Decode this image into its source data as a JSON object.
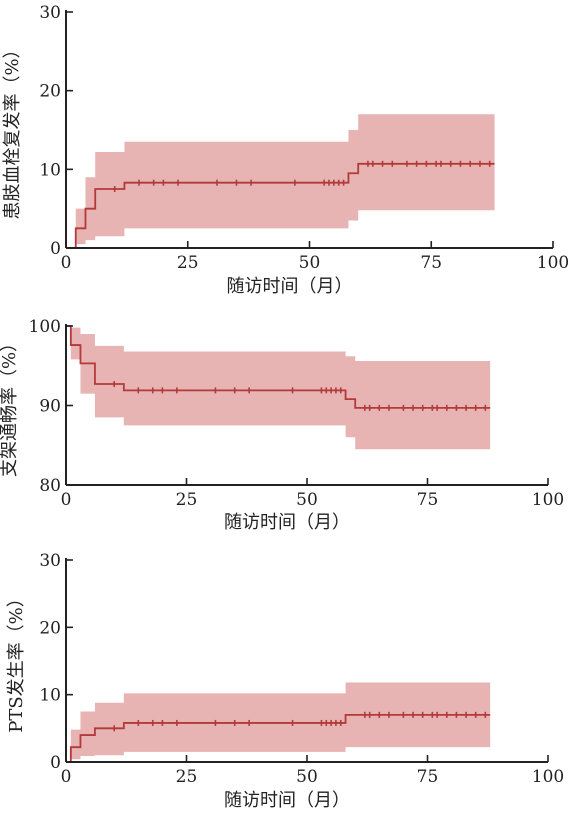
{
  "chart_data": [
    {
      "type": "line",
      "title": "",
      "xlabel": "随访时间（月）",
      "ylabel": "患肢血栓复发率（%）",
      "xlim": [
        0,
        100
      ],
      "ylim": [
        0,
        30
      ],
      "xticks": [
        "0",
        "25",
        "50",
        "75",
        "100"
      ],
      "yticks": [
        "0",
        "10",
        "20",
        "30"
      ],
      "grid": false,
      "series": [
        {
          "style": "step",
          "color": "#b33a3a",
          "x": [
            0,
            2,
            4,
            6,
            12,
            58,
            60,
            88
          ],
          "y": [
            0,
            2.5,
            5.0,
            7.5,
            8.3,
            9.5,
            10.7,
            10.7
          ],
          "ci_lower": [
            0,
            0.5,
            1.0,
            1.5,
            2.5,
            3.5,
            4.8,
            4.8
          ],
          "ci_upper": [
            0,
            5.0,
            9.0,
            12.2,
            13.5,
            15.0,
            17.0,
            17.0
          ],
          "censored_x": [
            10,
            15,
            18,
            20,
            23,
            31,
            35,
            38,
            47,
            53,
            54,
            55,
            56,
            57,
            62,
            63,
            65,
            67,
            70,
            72,
            74,
            76,
            77,
            79,
            81,
            83,
            85,
            87
          ],
          "band_color": "#e3a6a6"
        }
      ]
    },
    {
      "type": "line",
      "title": "",
      "xlabel": "随访时间（月）",
      "ylabel": "支架通畅率（%）",
      "xlim": [
        0,
        100
      ],
      "ylim": [
        80,
        100
      ],
      "xticks": [
        "0",
        "25",
        "50",
        "75",
        "100"
      ],
      "yticks": [
        "80",
        "90",
        "100"
      ],
      "grid": false,
      "series": [
        {
          "style": "step",
          "color": "#b33a3a",
          "x": [
            0,
            1,
            3,
            6,
            12,
            58,
            60,
            88
          ],
          "y": [
            100,
            97.6,
            95.3,
            92.7,
            91.9,
            90.8,
            89.7,
            89.7
          ],
          "ci_lower": [
            100,
            95.8,
            91.5,
            88.5,
            87.5,
            86.0,
            84.5,
            84.5
          ],
          "ci_upper": [
            100,
            99.8,
            99.0,
            97.5,
            96.8,
            96.2,
            95.6,
            95.6
          ],
          "censored_x": [
            10,
            15,
            18,
            20,
            23,
            31,
            35,
            38,
            47,
            53,
            54,
            55,
            56,
            57,
            62,
            63,
            65,
            67,
            70,
            72,
            74,
            76,
            77,
            79,
            81,
            83,
            85,
            87
          ],
          "band_color": "#e3a6a6"
        }
      ]
    },
    {
      "type": "line",
      "title": "",
      "xlabel": "随访时间（月）",
      "ylabel": "PTS发生率（%）",
      "xlim": [
        0,
        100
      ],
      "ylim": [
        0,
        30
      ],
      "xticks": [
        "0",
        "25",
        "50",
        "75",
        "100"
      ],
      "yticks": [
        "0",
        "10",
        "20",
        "30"
      ],
      "grid": false,
      "series": [
        {
          "style": "step",
          "color": "#b33a3a",
          "x": [
            0,
            1,
            3,
            6,
            12,
            58,
            88
          ],
          "y": [
            0,
            2.2,
            4.0,
            5.0,
            5.8,
            7.0,
            7.0
          ],
          "ci_lower": [
            0,
            0.4,
            0.9,
            1.0,
            1.5,
            2.2,
            2.2
          ],
          "ci_upper": [
            0,
            4.8,
            7.5,
            8.8,
            10.2,
            11.8,
            11.8
          ],
          "censored_x": [
            10,
            15,
            18,
            20,
            23,
            31,
            35,
            38,
            47,
            53,
            54,
            55,
            56,
            57,
            62,
            63,
            65,
            67,
            70,
            72,
            74,
            76,
            77,
            79,
            81,
            83,
            85,
            87
          ],
          "band_color": "#e3a6a6"
        }
      ]
    }
  ]
}
